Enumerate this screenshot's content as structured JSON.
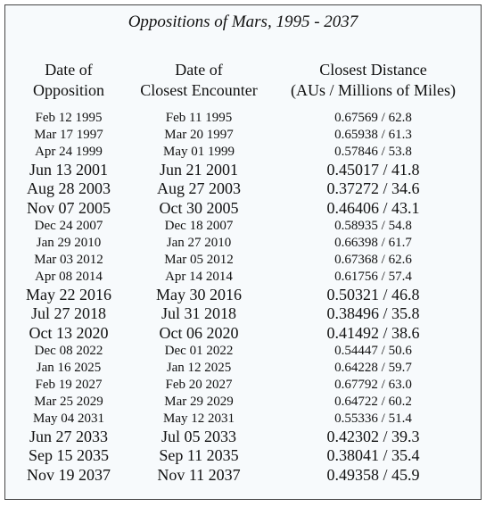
{
  "title": "Oppositions of Mars, 1995 - 2037",
  "table": {
    "headers": [
      [
        "Date of",
        "Opposition"
      ],
      [
        "Date of",
        "Closest Encounter"
      ],
      [
        "Closest Distance",
        "(AUs / Millions of Miles)"
      ]
    ],
    "rows": [
      {
        "opposition": "Feb 12 1995",
        "closest": "Feb 11 1995",
        "distance": "0.67569 / 62.8",
        "large": false
      },
      {
        "opposition": "Mar 17 1997",
        "closest": "Mar 20 1997",
        "distance": "0.65938 / 61.3",
        "large": false
      },
      {
        "opposition": "Apr 24 1999",
        "closest": "May 01 1999",
        "distance": "0.57846 / 53.8",
        "large": false
      },
      {
        "opposition": "Jun 13 2001",
        "closest": "Jun 21 2001",
        "distance": "0.45017 / 41.8",
        "large": true
      },
      {
        "opposition": "Aug 28 2003",
        "closest": "Aug 27 2003",
        "distance": "0.37272 / 34.6",
        "large": true
      },
      {
        "opposition": "Nov 07 2005",
        "closest": "Oct 30 2005",
        "distance": "0.46406 / 43.1",
        "large": true
      },
      {
        "opposition": "Dec 24 2007",
        "closest": "Dec 18 2007",
        "distance": "0.58935 / 54.8",
        "large": false
      },
      {
        "opposition": "Jan 29 2010",
        "closest": "Jan 27 2010",
        "distance": "0.66398 / 61.7",
        "large": false
      },
      {
        "opposition": "Mar 03 2012",
        "closest": "Mar 05 2012",
        "distance": "0.67368 / 62.6",
        "large": false
      },
      {
        "opposition": "Apr 08 2014",
        "closest": "Apr 14 2014",
        "distance": "0.61756 / 57.4",
        "large": false
      },
      {
        "opposition": "May 22 2016",
        "closest": "May 30 2016",
        "distance": "0.50321 / 46.8",
        "large": true
      },
      {
        "opposition": "Jul 27 2018",
        "closest": "Jul 31 2018",
        "distance": "0.38496 / 35.8",
        "large": true
      },
      {
        "opposition": "Oct 13 2020",
        "closest": "Oct 06 2020",
        "distance": "0.41492 / 38.6",
        "large": true
      },
      {
        "opposition": "Dec 08 2022",
        "closest": "Dec 01 2022",
        "distance": "0.54447 / 50.6",
        "large": false
      },
      {
        "opposition": "Jan 16 2025",
        "closest": "Jan 12 2025",
        "distance": "0.64228 / 59.7",
        "large": false
      },
      {
        "opposition": "Feb 19 2027",
        "closest": "Feb 20 2027",
        "distance": "0.67792 / 63.0",
        "large": false
      },
      {
        "opposition": "Mar 25 2029",
        "closest": "Mar 29 2029",
        "distance": "0.64722 / 60.2",
        "large": false
      },
      {
        "opposition": "May 04 2031",
        "closest": "May 12 2031",
        "distance": "0.55336 / 51.4",
        "large": false
      },
      {
        "opposition": "Jun 27 2033",
        "closest": "Jul 05 2033",
        "distance": "0.42302 / 39.3",
        "large": true
      },
      {
        "opposition": "Sep 15 2035",
        "closest": "Sep 11 2035",
        "distance": "0.38041 / 35.4",
        "large": true
      },
      {
        "opposition": "Nov 19 2037",
        "closest": "Nov 11 2037",
        "distance": "0.49358 / 45.9",
        "large": true
      }
    ]
  }
}
